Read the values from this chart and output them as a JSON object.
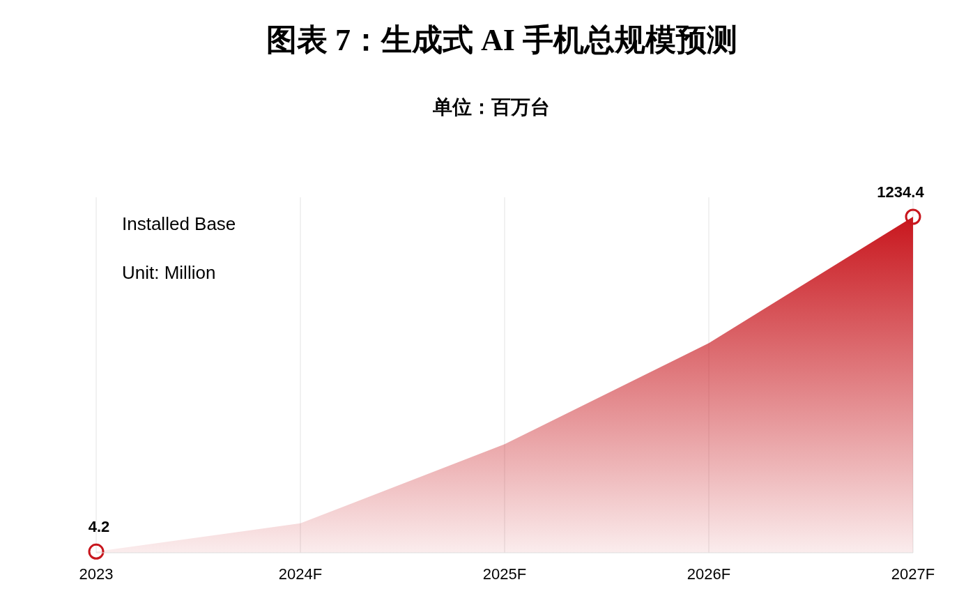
{
  "chart_data": {
    "type": "area",
    "title": "图表 7：生成式 AI 手机总规模预测",
    "subtitle": "单位：百万台",
    "annotations": [
      "Installed Base",
      "Unit: Million"
    ],
    "categories": [
      "2023",
      "2024F",
      "2025F",
      "2026F",
      "2027F"
    ],
    "grid": "x",
    "series": [
      {
        "color": "#c8161d",
        "values": [
          4.2,
          108,
          399,
          770,
          1234.4
        ],
        "value_labels": [
          "4.2",
          null,
          null,
          null,
          "1234.4"
        ]
      },
      {
        "type": "scatter",
        "color": "#c8161d",
        "marker": "circle",
        "values": [
          4.2,
          null,
          null,
          null,
          1234.4
        ]
      }
    ]
  }
}
